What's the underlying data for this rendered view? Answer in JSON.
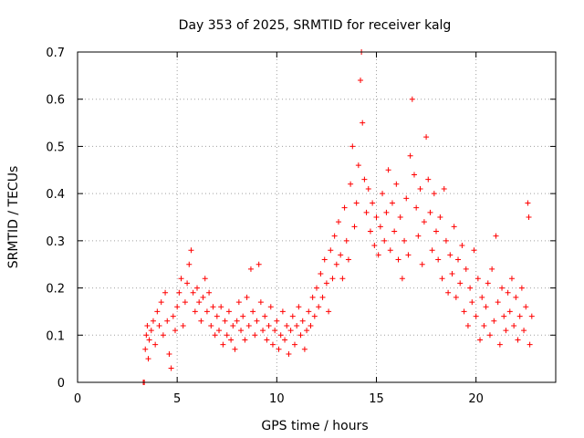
{
  "chart_data": {
    "type": "scatter",
    "title": "Day 353 of 2025, SRMTID for receiver kalg",
    "xlabel": "GPS time / hours",
    "ylabel": "SRMTID / TECUs",
    "xlim": [
      0,
      24
    ],
    "ylim": [
      0,
      0.7
    ],
    "xticks": [
      0,
      5,
      10,
      15,
      20
    ],
    "xtick_labels": [
      "0",
      "5",
      "10",
      "15",
      "20"
    ],
    "yticks": [
      0,
      0.1,
      0.2,
      0.3,
      0.4,
      0.5,
      0.6,
      0.7
    ],
    "ytick_labels": [
      "0",
      "0.1",
      "0.2",
      "0.3",
      "0.4",
      "0.5",
      "0.6",
      "0.7"
    ],
    "grid": true,
    "marker": "+",
    "color": "#ff0000",
    "series": [
      {
        "name": "SRMTID",
        "points": [
          [
            3.3,
            0.0
          ],
          [
            3.35,
            0.0
          ],
          [
            3.4,
            0.07
          ],
          [
            3.45,
            0.1
          ],
          [
            3.5,
            0.12
          ],
          [
            3.55,
            0.05
          ],
          [
            3.6,
            0.09
          ],
          [
            3.7,
            0.11
          ],
          [
            3.8,
            0.13
          ],
          [
            3.9,
            0.08
          ],
          [
            4.0,
            0.15
          ],
          [
            4.1,
            0.12
          ],
          [
            4.2,
            0.17
          ],
          [
            4.3,
            0.1
          ],
          [
            4.4,
            0.19
          ],
          [
            4.5,
            0.13
          ],
          [
            4.6,
            0.06
          ],
          [
            4.7,
            0.03
          ],
          [
            4.8,
            0.14
          ],
          [
            4.9,
            0.11
          ],
          [
            5.0,
            0.16
          ],
          [
            5.1,
            0.19
          ],
          [
            5.2,
            0.22
          ],
          [
            5.3,
            0.12
          ],
          [
            5.4,
            0.17
          ],
          [
            5.5,
            0.21
          ],
          [
            5.6,
            0.25
          ],
          [
            5.7,
            0.28
          ],
          [
            5.8,
            0.19
          ],
          [
            5.9,
            0.15
          ],
          [
            6.0,
            0.2
          ],
          [
            6.1,
            0.17
          ],
          [
            6.2,
            0.13
          ],
          [
            6.3,
            0.18
          ],
          [
            6.4,
            0.22
          ],
          [
            6.5,
            0.15
          ],
          [
            6.6,
            0.19
          ],
          [
            6.7,
            0.12
          ],
          [
            6.8,
            0.16
          ],
          [
            6.9,
            0.1
          ],
          [
            7.0,
            0.14
          ],
          [
            7.1,
            0.11
          ],
          [
            7.2,
            0.16
          ],
          [
            7.3,
            0.08
          ],
          [
            7.4,
            0.13
          ],
          [
            7.5,
            0.1
          ],
          [
            7.6,
            0.15
          ],
          [
            7.7,
            0.09
          ],
          [
            7.8,
            0.12
          ],
          [
            7.9,
            0.07
          ],
          [
            8.0,
            0.13
          ],
          [
            8.1,
            0.17
          ],
          [
            8.2,
            0.11
          ],
          [
            8.3,
            0.14
          ],
          [
            8.4,
            0.09
          ],
          [
            8.5,
            0.18
          ],
          [
            8.6,
            0.12
          ],
          [
            8.7,
            0.24
          ],
          [
            8.8,
            0.15
          ],
          [
            8.9,
            0.1
          ],
          [
            9.0,
            0.13
          ],
          [
            9.1,
            0.25
          ],
          [
            9.2,
            0.17
          ],
          [
            9.3,
            0.11
          ],
          [
            9.4,
            0.14
          ],
          [
            9.5,
            0.09
          ],
          [
            9.6,
            0.12
          ],
          [
            9.7,
            0.16
          ],
          [
            9.8,
            0.08
          ],
          [
            9.9,
            0.11
          ],
          [
            10.0,
            0.13
          ],
          [
            10.1,
            0.07
          ],
          [
            10.2,
            0.1
          ],
          [
            10.3,
            0.15
          ],
          [
            10.4,
            0.09
          ],
          [
            10.5,
            0.12
          ],
          [
            10.6,
            0.06
          ],
          [
            10.7,
            0.11
          ],
          [
            10.8,
            0.14
          ],
          [
            10.9,
            0.08
          ],
          [
            11.0,
            0.12
          ],
          [
            11.1,
            0.16
          ],
          [
            11.2,
            0.1
          ],
          [
            11.3,
            0.13
          ],
          [
            11.4,
            0.07
          ],
          [
            11.5,
            0.11
          ],
          [
            11.6,
            0.15
          ],
          [
            11.7,
            0.12
          ],
          [
            11.8,
            0.18
          ],
          [
            11.9,
            0.14
          ],
          [
            12.0,
            0.2
          ],
          [
            12.1,
            0.16
          ],
          [
            12.2,
            0.23
          ],
          [
            12.3,
            0.18
          ],
          [
            12.4,
            0.26
          ],
          [
            12.5,
            0.21
          ],
          [
            12.6,
            0.15
          ],
          [
            12.7,
            0.28
          ],
          [
            12.8,
            0.22
          ],
          [
            12.9,
            0.31
          ],
          [
            13.0,
            0.25
          ],
          [
            13.1,
            0.34
          ],
          [
            13.2,
            0.27
          ],
          [
            13.3,
            0.22
          ],
          [
            13.4,
            0.37
          ],
          [
            13.5,
            0.3
          ],
          [
            13.6,
            0.26
          ],
          [
            13.7,
            0.42
          ],
          [
            13.8,
            0.5
          ],
          [
            13.9,
            0.33
          ],
          [
            14.0,
            0.38
          ],
          [
            14.1,
            0.46
          ],
          [
            14.2,
            0.64
          ],
          [
            14.25,
            0.7
          ],
          [
            14.3,
            0.55
          ],
          [
            14.4,
            0.43
          ],
          [
            14.5,
            0.36
          ],
          [
            14.6,
            0.41
          ],
          [
            14.7,
            0.32
          ],
          [
            14.8,
            0.38
          ],
          [
            14.9,
            0.29
          ],
          [
            15.0,
            0.35
          ],
          [
            15.1,
            0.27
          ],
          [
            15.2,
            0.33
          ],
          [
            15.3,
            0.4
          ],
          [
            15.4,
            0.3
          ],
          [
            15.5,
            0.36
          ],
          [
            15.6,
            0.45
          ],
          [
            15.7,
            0.28
          ],
          [
            15.8,
            0.38
          ],
          [
            15.9,
            0.32
          ],
          [
            16.0,
            0.42
          ],
          [
            16.1,
            0.26
          ],
          [
            16.2,
            0.35
          ],
          [
            16.3,
            0.22
          ],
          [
            16.4,
            0.3
          ],
          [
            16.5,
            0.39
          ],
          [
            16.6,
            0.27
          ],
          [
            16.7,
            0.48
          ],
          [
            16.8,
            0.6
          ],
          [
            16.9,
            0.44
          ],
          [
            17.0,
            0.37
          ],
          [
            17.1,
            0.31
          ],
          [
            17.2,
            0.41
          ],
          [
            17.3,
            0.25
          ],
          [
            17.4,
            0.34
          ],
          [
            17.5,
            0.52
          ],
          [
            17.6,
            0.43
          ],
          [
            17.7,
            0.36
          ],
          [
            17.8,
            0.28
          ],
          [
            17.9,
            0.4
          ],
          [
            18.0,
            0.32
          ],
          [
            18.1,
            0.26
          ],
          [
            18.2,
            0.35
          ],
          [
            18.3,
            0.22
          ],
          [
            18.4,
            0.41
          ],
          [
            18.5,
            0.3
          ],
          [
            18.6,
            0.19
          ],
          [
            18.7,
            0.27
          ],
          [
            18.8,
            0.23
          ],
          [
            18.9,
            0.33
          ],
          [
            19.0,
            0.18
          ],
          [
            19.1,
            0.26
          ],
          [
            19.2,
            0.21
          ],
          [
            19.3,
            0.29
          ],
          [
            19.4,
            0.15
          ],
          [
            19.5,
            0.24
          ],
          [
            19.6,
            0.12
          ],
          [
            19.7,
            0.2
          ],
          [
            19.8,
            0.17
          ],
          [
            19.9,
            0.28
          ],
          [
            20.0,
            0.14
          ],
          [
            20.1,
            0.22
          ],
          [
            20.2,
            0.09
          ],
          [
            20.3,
            0.18
          ],
          [
            20.4,
            0.12
          ],
          [
            20.5,
            0.16
          ],
          [
            20.6,
            0.21
          ],
          [
            20.7,
            0.1
          ],
          [
            20.8,
            0.24
          ],
          [
            20.9,
            0.13
          ],
          [
            21.0,
            0.31
          ],
          [
            21.1,
            0.17
          ],
          [
            21.2,
            0.08
          ],
          [
            21.3,
            0.2
          ],
          [
            21.4,
            0.14
          ],
          [
            21.5,
            0.11
          ],
          [
            21.6,
            0.19
          ],
          [
            21.7,
            0.15
          ],
          [
            21.8,
            0.22
          ],
          [
            21.9,
            0.12
          ],
          [
            22.0,
            0.18
          ],
          [
            22.1,
            0.09
          ],
          [
            22.2,
            0.14
          ],
          [
            22.3,
            0.2
          ],
          [
            22.4,
            0.11
          ],
          [
            22.5,
            0.16
          ],
          [
            22.6,
            0.38
          ],
          [
            22.65,
            0.35
          ],
          [
            22.7,
            0.08
          ],
          [
            22.8,
            0.14
          ]
        ]
      }
    ]
  }
}
